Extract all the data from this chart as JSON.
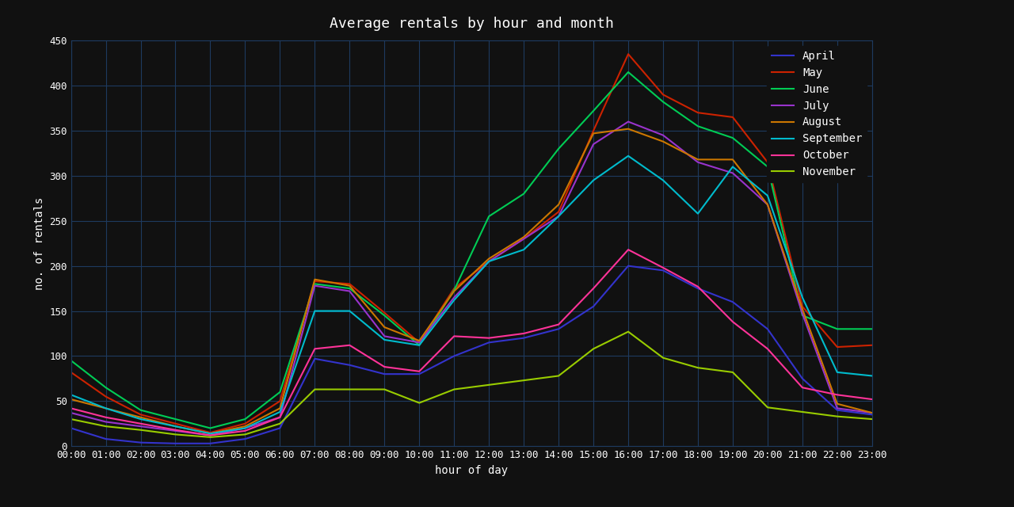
{
  "title": "Average rentals by hour and month",
  "xlabel": "hour of day",
  "ylabel": "no. of rentals",
  "background_color": "#111111",
  "axes_color": "#111111",
  "text_color": "#ffffff",
  "grid_color": "#1e3a5f",
  "hours": [
    0,
    1,
    2,
    3,
    4,
    5,
    6,
    7,
    8,
    9,
    10,
    11,
    12,
    13,
    14,
    15,
    16,
    17,
    18,
    19,
    20,
    21,
    22,
    23
  ],
  "series": {
    "April": [
      20,
      8,
      4,
      3,
      3,
      8,
      20,
      97,
      90,
      80,
      80,
      100,
      115,
      120,
      130,
      155,
      200,
      195,
      175,
      160,
      130,
      75,
      40,
      35
    ],
    "May": [
      82,
      55,
      35,
      25,
      15,
      25,
      50,
      183,
      180,
      148,
      115,
      175,
      205,
      230,
      260,
      350,
      435,
      390,
      370,
      365,
      315,
      155,
      110,
      112
    ],
    "June": [
      95,
      65,
      40,
      30,
      20,
      30,
      60,
      180,
      175,
      145,
      112,
      173,
      255,
      280,
      330,
      372,
      415,
      382,
      355,
      342,
      310,
      145,
      130,
      130
    ],
    "July": [
      37,
      27,
      22,
      17,
      12,
      20,
      32,
      178,
      172,
      122,
      115,
      165,
      205,
      230,
      255,
      335,
      360,
      345,
      315,
      303,
      268,
      147,
      42,
      37
    ],
    "August": [
      52,
      42,
      32,
      22,
      14,
      22,
      42,
      185,
      178,
      132,
      117,
      172,
      208,
      232,
      268,
      347,
      352,
      338,
      318,
      318,
      268,
      152,
      47,
      37
    ],
    "September": [
      57,
      42,
      30,
      22,
      14,
      20,
      38,
      150,
      150,
      118,
      112,
      162,
      205,
      218,
      255,
      295,
      322,
      295,
      258,
      310,
      278,
      165,
      82,
      78
    ],
    "October": [
      42,
      32,
      25,
      18,
      12,
      17,
      32,
      108,
      112,
      88,
      83,
      122,
      120,
      125,
      135,
      175,
      218,
      198,
      177,
      138,
      108,
      65,
      57,
      52
    ],
    "November": [
      30,
      22,
      18,
      13,
      10,
      13,
      25,
      63,
      63,
      63,
      48,
      63,
      68,
      73,
      78,
      108,
      127,
      98,
      87,
      82,
      43,
      38,
      33,
      30
    ]
  },
  "colors": {
    "April": "#3333cc",
    "May": "#cc2200",
    "June": "#00cc55",
    "July": "#9933cc",
    "August": "#cc7700",
    "September": "#00bbcc",
    "October": "#ff3399",
    "November": "#99cc00"
  },
  "ylim": [
    0,
    450
  ],
  "yticks": [
    0,
    50,
    100,
    150,
    200,
    250,
    300,
    350,
    400,
    450
  ],
  "hour_labels": [
    "00:00",
    "01:00",
    "02:00",
    "03:00",
    "04:00",
    "05:00",
    "06:00",
    "07:00",
    "08:00",
    "09:00",
    "10:00",
    "11:00",
    "12:00",
    "13:00",
    "14:00",
    "15:00",
    "16:00",
    "17:00",
    "18:00",
    "19:00",
    "20:00",
    "21:00",
    "22:00",
    "23:00"
  ],
  "font_family": "monospace",
  "title_fontsize": 13,
  "label_fontsize": 10,
  "tick_fontsize": 9,
  "legend_fontsize": 10,
  "linewidth": 1.5
}
